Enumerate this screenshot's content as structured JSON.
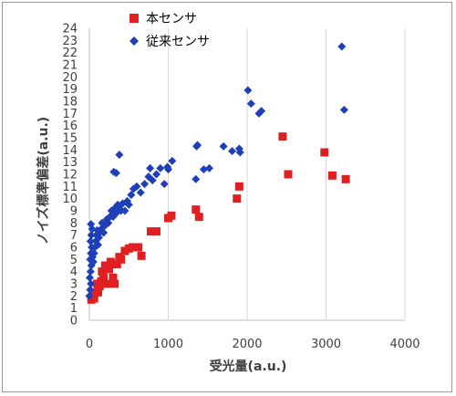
{
  "chart_data": {
    "type": "scatter",
    "xlabel": "受光量(a.u.)",
    "ylabel": "ノイズ標準偏差(a.u.)",
    "xlim": [
      0,
      4000
    ],
    "ylim": [
      0,
      24
    ],
    "x_ticks": [
      0,
      1000,
      2000,
      3000,
      4000
    ],
    "y_ticks": [
      0,
      1,
      2,
      3,
      4,
      5,
      6,
      7,
      8,
      9,
      10,
      11,
      12,
      13,
      14,
      15,
      16,
      17,
      18,
      19,
      20,
      21,
      22,
      23,
      24
    ],
    "grid": "vertical",
    "legend_position": "top-left",
    "series": [
      {
        "name": "本センサ",
        "marker": "square",
        "color": "#e02020",
        "points": [
          [
            25,
            1.7
          ],
          [
            40,
            2.0
          ],
          [
            60,
            1.8
          ],
          [
            80,
            2.3
          ],
          [
            100,
            3.0
          ],
          [
            110,
            2.3
          ],
          [
            130,
            2.8
          ],
          [
            150,
            3.2
          ],
          [
            160,
            4.0
          ],
          [
            180,
            3.5
          ],
          [
            200,
            4.5
          ],
          [
            220,
            3.0
          ],
          [
            250,
            4.2
          ],
          [
            270,
            4.8
          ],
          [
            300,
            3.5
          ],
          [
            320,
            3.0
          ],
          [
            350,
            4.6
          ],
          [
            380,
            5.2
          ],
          [
            400,
            5.0
          ],
          [
            450,
            5.7
          ],
          [
            500,
            5.9
          ],
          [
            550,
            6.0
          ],
          [
            620,
            6.0
          ],
          [
            660,
            5.3
          ],
          [
            780,
            7.3
          ],
          [
            850,
            7.3
          ],
          [
            1000,
            8.4
          ],
          [
            1040,
            8.6
          ],
          [
            1350,
            9.1
          ],
          [
            1390,
            8.5
          ],
          [
            1870,
            10.0
          ],
          [
            1900,
            11.0
          ],
          [
            2450,
            15.1
          ],
          [
            2520,
            12.0
          ],
          [
            2980,
            13.8
          ],
          [
            3080,
            11.9
          ],
          [
            3250,
            11.6
          ]
        ]
      },
      {
        "name": "従来センサ",
        "marker": "diamond",
        "color": "#1f3fb8",
        "points": [
          [
            0,
            2.0
          ],
          [
            10,
            2.5
          ],
          [
            20,
            3.0
          ],
          [
            5,
            3.5
          ],
          [
            15,
            4.0
          ],
          [
            25,
            4.5
          ],
          [
            10,
            5.0
          ],
          [
            20,
            5.5
          ],
          [
            30,
            6.0
          ],
          [
            15,
            6.5
          ],
          [
            25,
            7.0
          ],
          [
            35,
            7.5
          ],
          [
            20,
            7.9
          ],
          [
            40,
            5.2
          ],
          [
            50,
            4.8
          ],
          [
            60,
            5.5
          ],
          [
            70,
            6.0
          ],
          [
            80,
            6.5
          ],
          [
            90,
            7.0
          ],
          [
            100,
            7.4
          ],
          [
            110,
            6.2
          ],
          [
            120,
            6.8
          ],
          [
            130,
            7.2
          ],
          [
            150,
            7.5
          ],
          [
            160,
            8.0
          ],
          [
            180,
            7.2
          ],
          [
            200,
            7.8
          ],
          [
            220,
            8.3
          ],
          [
            240,
            8.0
          ],
          [
            260,
            8.5
          ],
          [
            280,
            9.0
          ],
          [
            300,
            8.5
          ],
          [
            320,
            9.2
          ],
          [
            340,
            8.8
          ],
          [
            360,
            9.5
          ],
          [
            380,
            9.2
          ],
          [
            400,
            9.0
          ],
          [
            420,
            9.6
          ],
          [
            450,
            9.0
          ],
          [
            480,
            9.8
          ],
          [
            500,
            9.5
          ],
          [
            530,
            10.3
          ],
          [
            560,
            10.8
          ],
          [
            600,
            11.0
          ],
          [
            650,
            10.5
          ],
          [
            700,
            11.2
          ],
          [
            750,
            11.8
          ],
          [
            800,
            11.5
          ],
          [
            850,
            12.0
          ],
          [
            900,
            12.5
          ],
          [
            950,
            11.2
          ],
          [
            1000,
            12.4
          ],
          [
            1050,
            13.1
          ],
          [
            1450,
            12.4
          ],
          [
            1520,
            12.5
          ],
          [
            1360,
            14.3
          ],
          [
            1370,
            14.4
          ],
          [
            1700,
            14.3
          ],
          [
            1810,
            13.9
          ],
          [
            1900,
            14.1
          ],
          [
            1910,
            13.8
          ],
          [
            2010,
            18.9
          ],
          [
            2050,
            17.8
          ],
          [
            2150,
            17.0
          ],
          [
            2180,
            17.2
          ],
          [
            3200,
            22.5
          ],
          [
            3230,
            17.3
          ],
          [
            340,
            12.1
          ],
          [
            310,
            12.2
          ],
          [
            380,
            13.6
          ],
          [
            770,
            12.5
          ],
          [
            990,
            12.6
          ],
          [
            1350,
            11.6
          ]
        ]
      }
    ]
  }
}
